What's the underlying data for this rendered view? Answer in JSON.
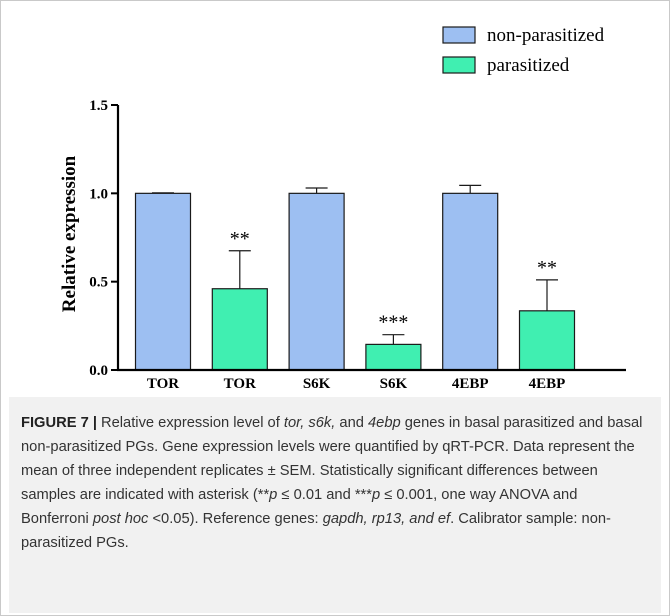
{
  "chart_data": {
    "type": "bar",
    "categories": [
      "TOR",
      "TOR",
      "S6K",
      "S6K",
      "4EBP",
      "4EBP"
    ],
    "series": [
      {
        "name": "non-parasitized",
        "color": "#9dbff2"
      },
      {
        "name": "parasitized",
        "color": "#40efb1"
      }
    ],
    "bar_series_index": [
      0,
      1,
      0,
      1,
      0,
      1
    ],
    "values": [
      1.0,
      0.46,
      1.0,
      0.145,
      1.0,
      0.335
    ],
    "errors": [
      0.003,
      0.215,
      0.03,
      0.055,
      0.045,
      0.175
    ],
    "significance": [
      "",
      "**",
      "",
      "***",
      "",
      "**"
    ],
    "xlabel": "",
    "ylabel": "Relative expression",
    "ylim": [
      0,
      1.5
    ],
    "yticks": [
      0.0,
      0.5,
      1.0,
      1.5
    ],
    "ytick_labels": [
      "0.0",
      "0.5",
      "1.0",
      "1.5"
    ],
    "legend_position": "top-right",
    "grid": false
  },
  "caption": {
    "label": "FIGURE 7 |",
    "t1": " Relative expression level of ",
    "i1": "tor, s6k,",
    "t2": " and ",
    "i2": "4ebp",
    "t3": " genes in basal parasitized and basal non-parasitized PGs. Gene expression levels were quantified by qRT-PCR. Data represent the mean of three independent replicates ± SEM. Statistically significant differences between samples are indicated with asterisk (**",
    "i3": "p",
    "t4": " ≤ 0.01 and ***",
    "i4": "p",
    "t5": " ≤ 0.001, one way ANOVA and Bonferroni ",
    "i5": "post hoc",
    "t6": " <0.05). Reference genes: ",
    "i6": "gapdh, rp13, and ef",
    "t7": ". Calibrator sample: non-parasitized PGs."
  }
}
